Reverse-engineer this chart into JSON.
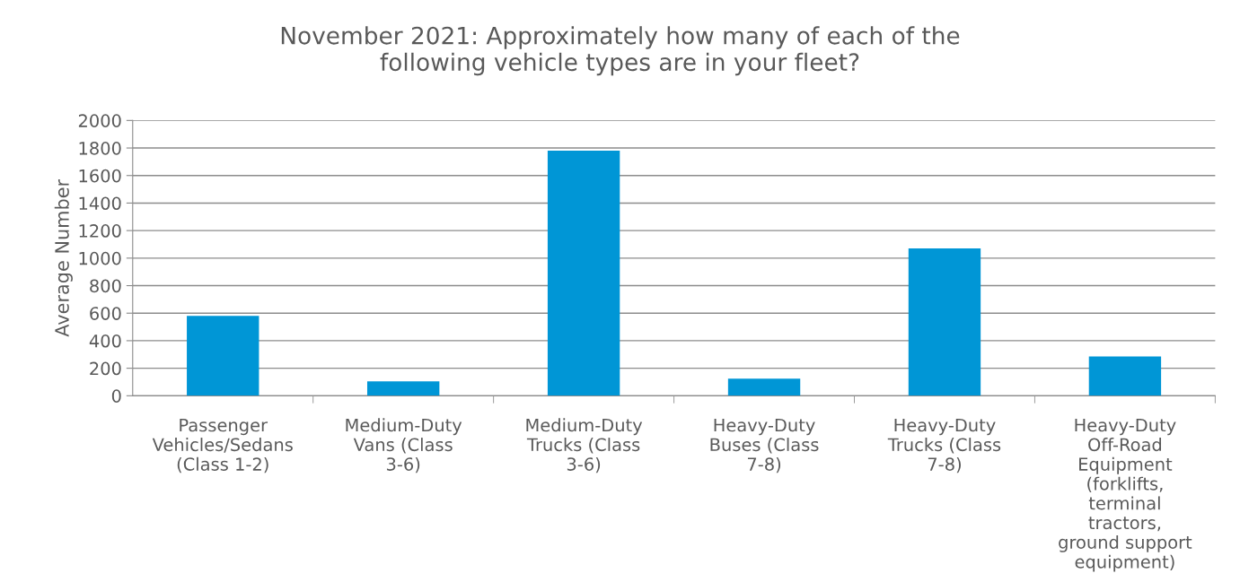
{
  "chart_data": {
    "type": "bar",
    "title": "November 2021: Approximately how many of each of the following vehicle types are in your fleet?",
    "ylabel": "Average Number",
    "categories": [
      "Passenger Vehicles/Sedans (Class 1-2)",
      "Medium-Duty Vans (Class 3-6)",
      "Medium-Duty Trucks (Class 3-6)",
      "Heavy-Duty Buses (Class 7-8)",
      "Heavy-Duty Trucks (Class 7-8)",
      "Heavy-Duty Off-Road Equipment (forklifts, terminal tractors, ground support equipment)"
    ],
    "values": [
      580,
      105,
      1780,
      125,
      1070,
      285
    ],
    "color": "#0096d6",
    "ylim": [
      0,
      2000
    ],
    "yticks": [
      0,
      200,
      400,
      600,
      800,
      1000,
      1200,
      1400,
      1600,
      1800,
      2000
    ],
    "grid": "y",
    "legend": false
  }
}
